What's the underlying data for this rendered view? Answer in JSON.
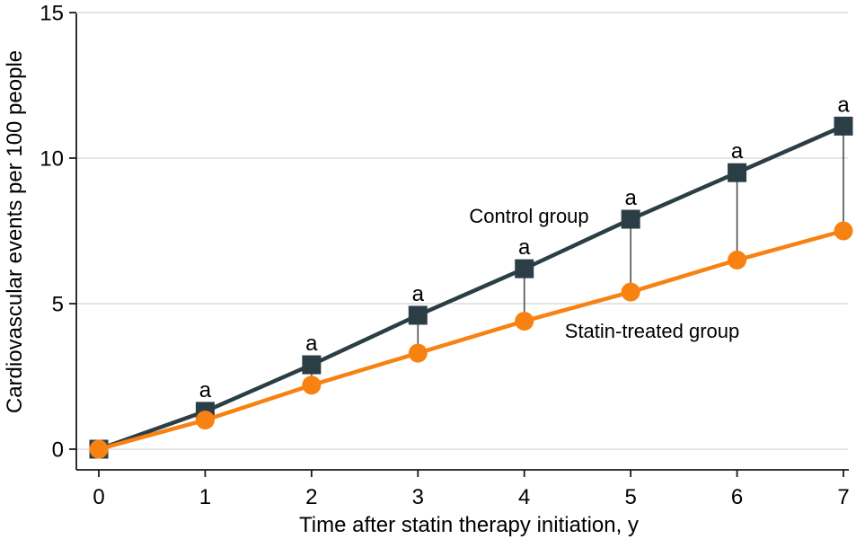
{
  "chart_data": {
    "type": "line",
    "title": "",
    "xlabel": "Time after statin therapy initiation, y",
    "ylabel": "Cardiovascular events per 100 people",
    "x": [
      0,
      1,
      2,
      3,
      4,
      5,
      6,
      7
    ],
    "series": [
      {
        "name": "Control group",
        "values": [
          0,
          1.3,
          2.9,
          4.6,
          6.2,
          7.9,
          9.5,
          11.1
        ],
        "color": "#2C3E45",
        "marker": "square"
      },
      {
        "name": "Statin-treated group",
        "values": [
          0,
          1.0,
          2.2,
          3.3,
          4.4,
          5.4,
          6.5,
          7.5
        ],
        "color": "#F78212",
        "marker": "circle"
      }
    ],
    "xlim": [
      0,
      7
    ],
    "ylim": [
      0,
      15
    ],
    "xticks": [
      0,
      1,
      2,
      3,
      4,
      5,
      6,
      7
    ],
    "yticks": [
      0,
      5,
      10,
      15
    ],
    "grid": "horizontal",
    "legend_position": "inline-labels",
    "annotations": {
      "letter": "a",
      "at_x": [
        1,
        2,
        3,
        4,
        5,
        6,
        7
      ],
      "applies_to": "Control group"
    },
    "difference_connectors": {
      "present": true,
      "between": [
        "Control group",
        "Statin-treated group"
      ],
      "at_x": [
        1,
        2,
        3,
        4,
        5,
        6,
        7
      ]
    },
    "colors": {
      "control": "#2C3E45",
      "statin": "#F78212",
      "grid": "#E5E5E5",
      "axis": "#1A1A1A",
      "connector": "#4D4D4D",
      "text": "#000000"
    }
  }
}
